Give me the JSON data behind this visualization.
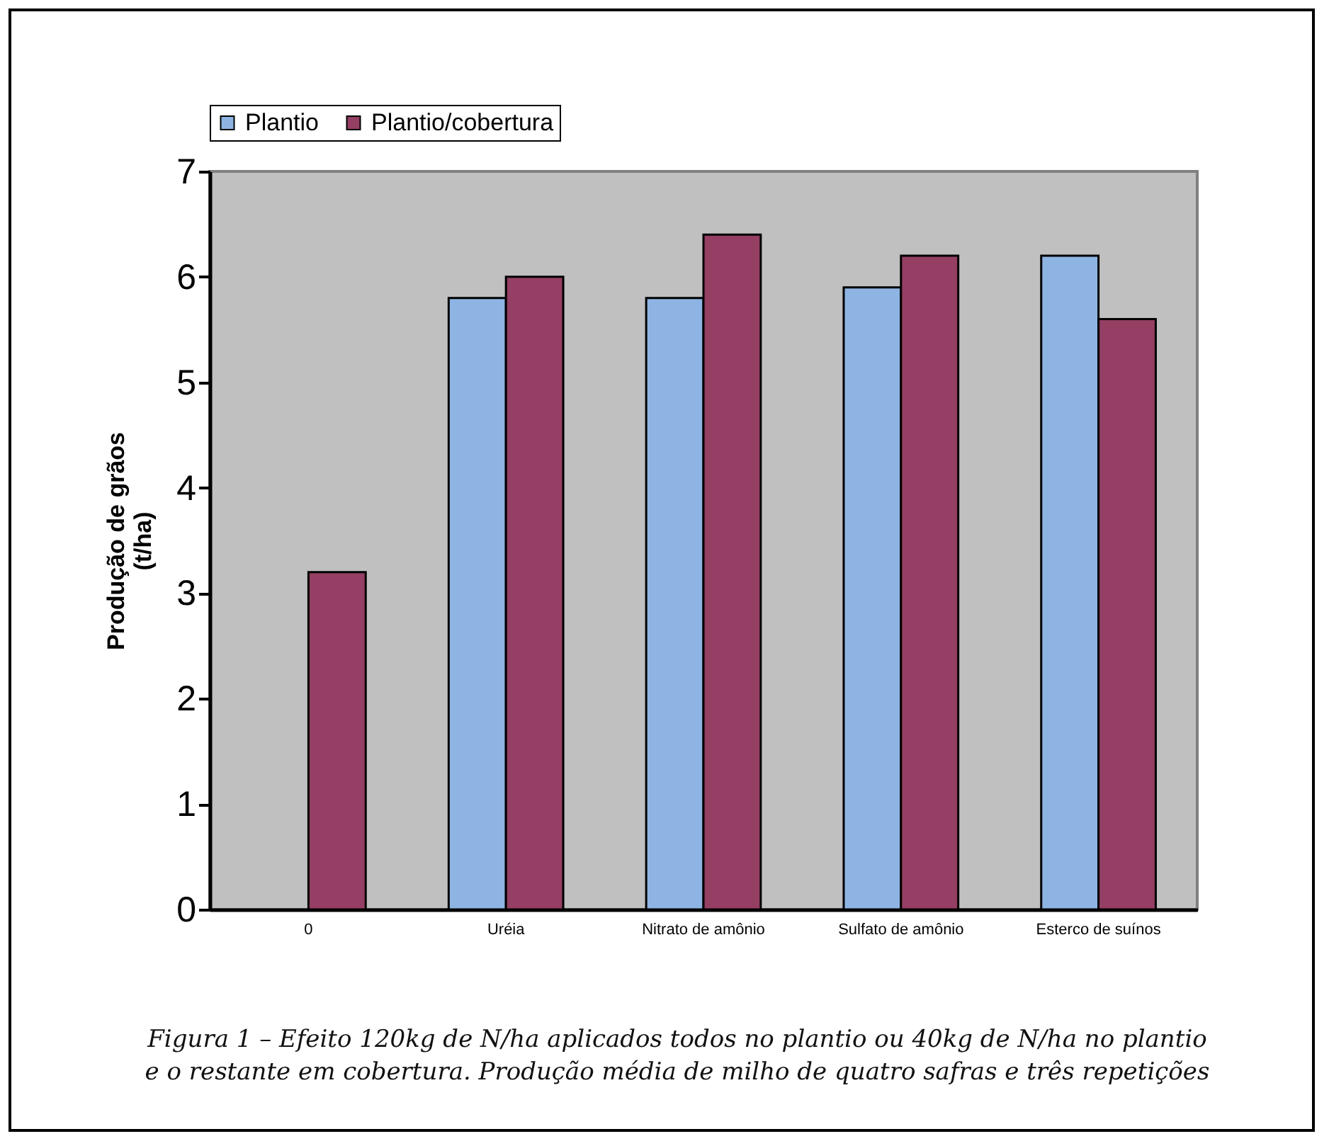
{
  "chart_data": {
    "type": "bar",
    "ylabel": "Produção de grãos\n(t/ha)",
    "categories": [
      "0",
      "Uréia",
      "Nitrato de amônio",
      "Sulfato de amônio",
      "Esterco de suínos"
    ],
    "series": [
      {
        "name": "Plantio",
        "color": "#8eb4e3",
        "values": [
          null,
          5.8,
          5.8,
          5.9,
          6.2
        ]
      },
      {
        "name": "Plantio/cobertura",
        "color": "#943f63",
        "values": [
          3.2,
          6.0,
          6.4,
          6.2,
          5.6
        ]
      }
    ],
    "ylim": [
      0,
      7
    ],
    "yticks": [
      0,
      1,
      2,
      3,
      4,
      5,
      6,
      7
    ],
    "grid": false,
    "legend": "top",
    "annotations": [
      "Figura 1 – Efeito 120kg de N/ha aplicados todos no plantio ou 40kg de N/ha no plantio e o restante em cobertura. Produção média de milho de quatro safras e três repetições"
    ]
  }
}
